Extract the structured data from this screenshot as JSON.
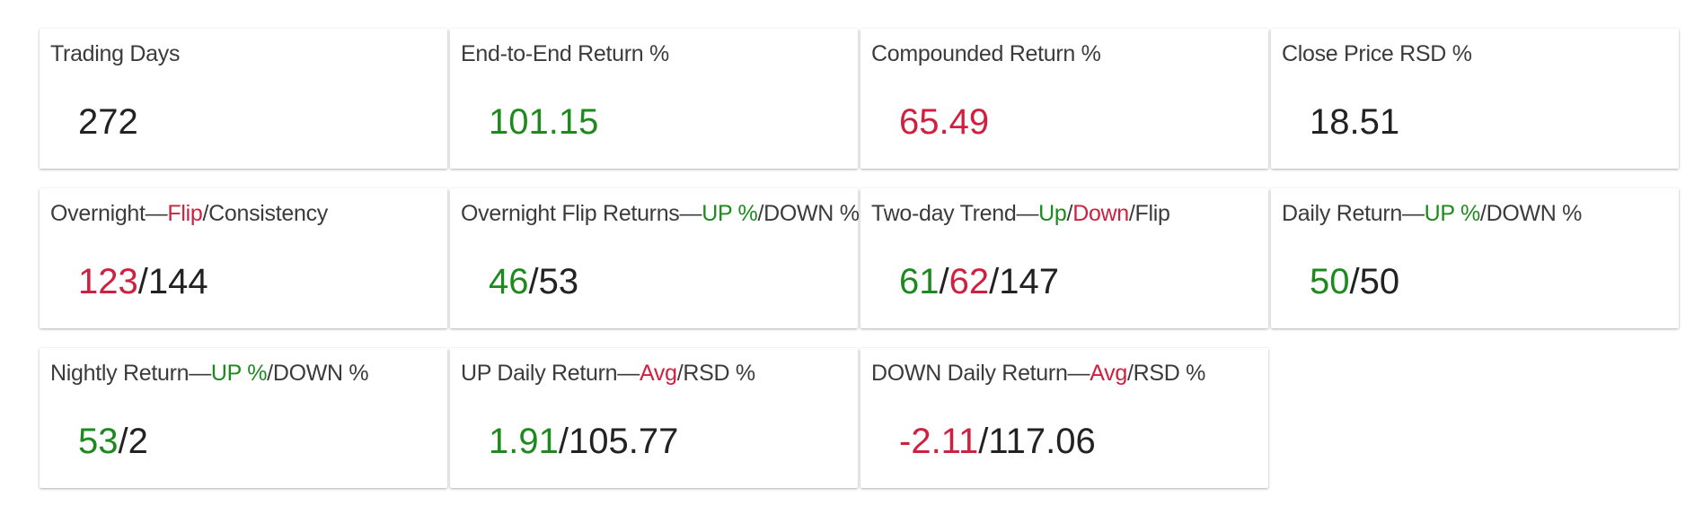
{
  "colors": {
    "positive": "#1e8a1e",
    "negative": "#d0203f",
    "neutral": "#222222"
  },
  "cards": [
    {
      "title": [
        {
          "text": "Trading Days",
          "color": "neutral"
        }
      ],
      "value": [
        {
          "text": "272",
          "color": "neutral"
        }
      ]
    },
    {
      "title": [
        {
          "text": "End-to-End Return %",
          "color": "neutral"
        }
      ],
      "value": [
        {
          "text": "101.15",
          "color": "positive"
        }
      ]
    },
    {
      "title": [
        {
          "text": "Compounded Return %",
          "color": "neutral"
        }
      ],
      "value": [
        {
          "text": "65.49",
          "color": "negative"
        }
      ]
    },
    {
      "title": [
        {
          "text": "Close Price RSD %",
          "color": "neutral"
        }
      ],
      "value": [
        {
          "text": "18.51",
          "color": "neutral"
        }
      ]
    },
    {
      "title": [
        {
          "text": "Overnight—",
          "color": "neutral"
        },
        {
          "text": "Flip",
          "color": "negative"
        },
        {
          "text": "/Consistency",
          "color": "neutral"
        }
      ],
      "value": [
        {
          "text": "123",
          "color": "negative"
        },
        {
          "text": "/144",
          "color": "neutral"
        }
      ]
    },
    {
      "title": [
        {
          "text": "Overnight Flip Returns—",
          "color": "neutral"
        },
        {
          "text": "UP %",
          "color": "positive"
        },
        {
          "text": "/DOWN %",
          "color": "neutral"
        }
      ],
      "value": [
        {
          "text": "46",
          "color": "positive"
        },
        {
          "text": "/53",
          "color": "neutral"
        }
      ]
    },
    {
      "title": [
        {
          "text": "Two-day Trend—",
          "color": "neutral"
        },
        {
          "text": "Up",
          "color": "positive"
        },
        {
          "text": "/",
          "color": "neutral"
        },
        {
          "text": "Down",
          "color": "negative"
        },
        {
          "text": "/Flip",
          "color": "neutral"
        }
      ],
      "value": [
        {
          "text": "61",
          "color": "positive"
        },
        {
          "text": "/",
          "color": "neutral"
        },
        {
          "text": "62",
          "color": "negative"
        },
        {
          "text": "/147",
          "color": "neutral"
        }
      ]
    },
    {
      "title": [
        {
          "text": "Daily Return—",
          "color": "neutral"
        },
        {
          "text": "UP %",
          "color": "positive"
        },
        {
          "text": "/DOWN %",
          "color": "neutral"
        }
      ],
      "value": [
        {
          "text": "50",
          "color": "positive"
        },
        {
          "text": "/50",
          "color": "neutral"
        }
      ]
    },
    {
      "title": [
        {
          "text": "Nightly Return—",
          "color": "neutral"
        },
        {
          "text": "UP %",
          "color": "positive"
        },
        {
          "text": "/DOWN %",
          "color": "neutral"
        }
      ],
      "value": [
        {
          "text": "53",
          "color": "positive"
        },
        {
          "text": "/2",
          "color": "neutral"
        }
      ]
    },
    {
      "title": [
        {
          "text": "UP Daily Return—",
          "color": "neutral"
        },
        {
          "text": "Avg",
          "color": "negative"
        },
        {
          "text": "/RSD %",
          "color": "neutral"
        }
      ],
      "value": [
        {
          "text": "1.91",
          "color": "positive"
        },
        {
          "text": "/105.77",
          "color": "neutral"
        }
      ]
    },
    {
      "title": [
        {
          "text": "DOWN Daily Return—",
          "color": "neutral"
        },
        {
          "text": "Avg",
          "color": "negative"
        },
        {
          "text": "/RSD %",
          "color": "neutral"
        }
      ],
      "value": [
        {
          "text": "-2.11",
          "color": "negative"
        },
        {
          "text": "/117.06",
          "color": "neutral"
        }
      ]
    }
  ]
}
